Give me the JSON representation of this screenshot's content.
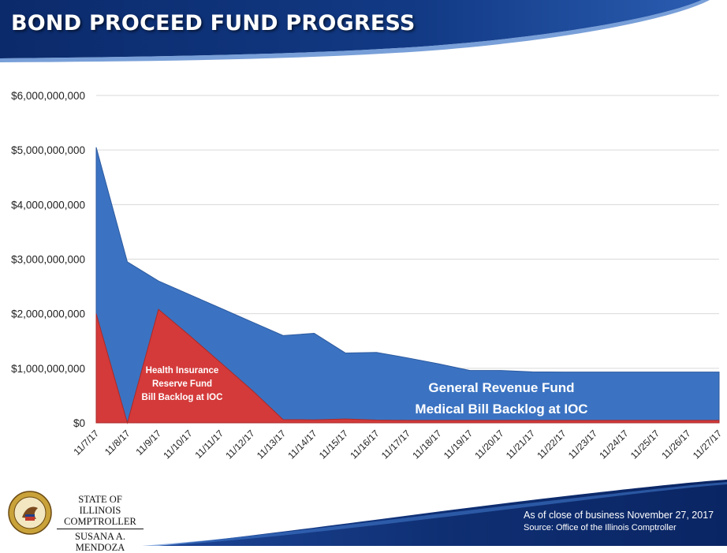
{
  "header": {
    "title": "BOND PROCEED FUND PROGRESS"
  },
  "colors": {
    "blue": "#3b73c2",
    "red": "#d43a3a",
    "navy": "#0d2a66"
  },
  "chart_data": {
    "type": "area",
    "title": "",
    "xlabel": "",
    "ylabel": "",
    "ylim": [
      0,
      6000000000
    ],
    "y_ticks": [
      0,
      1000000000,
      2000000000,
      3000000000,
      4000000000,
      5000000000,
      6000000000
    ],
    "y_tick_labels": [
      "$0",
      "$1,000,000,000",
      "$2,000,000,000",
      "$3,000,000,000",
      "$4,000,000,000",
      "$5,000,000,000",
      "$6,000,000,000"
    ],
    "grid": true,
    "categories": [
      "11/7/17",
      "11/8/17",
      "11/9/17",
      "11/10/17",
      "11/11/17",
      "11/12/17",
      "11/13/17",
      "11/14/17",
      "11/15/17",
      "11/16/17",
      "11/17/17",
      "11/18/17",
      "11/19/17",
      "11/20/17",
      "11/21/17",
      "11/22/17",
      "11/23/17",
      "11/24/17",
      "11/25/17",
      "11/26/17",
      "11/27/17"
    ],
    "series": [
      {
        "name": "General Revenue Fund Medical Bill Backlog at IOC",
        "color": "#3b73c2",
        "values": [
          5050000000,
          2950000000,
          2600000000,
          2350000000,
          2100000000,
          1850000000,
          1600000000,
          1640000000,
          1280000000,
          1290000000,
          1190000000,
          1080000000,
          960000000,
          960000000,
          935000000,
          930000000,
          930000000,
          930000000,
          930000000,
          930000000,
          930000000
        ]
      },
      {
        "name": "Health Insurance Reserve Fund Bill Backlog at IOC",
        "color": "#d43a3a",
        "values": [
          2000000000,
          0,
          2080000000,
          1600000000,
          1100000000,
          600000000,
          60000000,
          55000000,
          70000000,
          50000000,
          45000000,
          45000000,
          45000000,
          45000000,
          45000000,
          45000000,
          45000000,
          45000000,
          45000000,
          45000000,
          45000000
        ]
      }
    ],
    "annotations": {
      "red": [
        "Health Insurance",
        "Reserve Fund",
        "Bill Backlog at IOC"
      ],
      "blue": [
        "General Revenue Fund",
        "Medical Bill Backlog at IOC"
      ]
    }
  },
  "footer": {
    "office_line1": "STATE OF ILLINOIS",
    "office_line2": "COMPTROLLER",
    "office_line3": "SUSANA A. MENDOZA",
    "as_of": "As of close of business November 27, 2017",
    "source": "Source: Office of the Illinois Comptroller"
  }
}
